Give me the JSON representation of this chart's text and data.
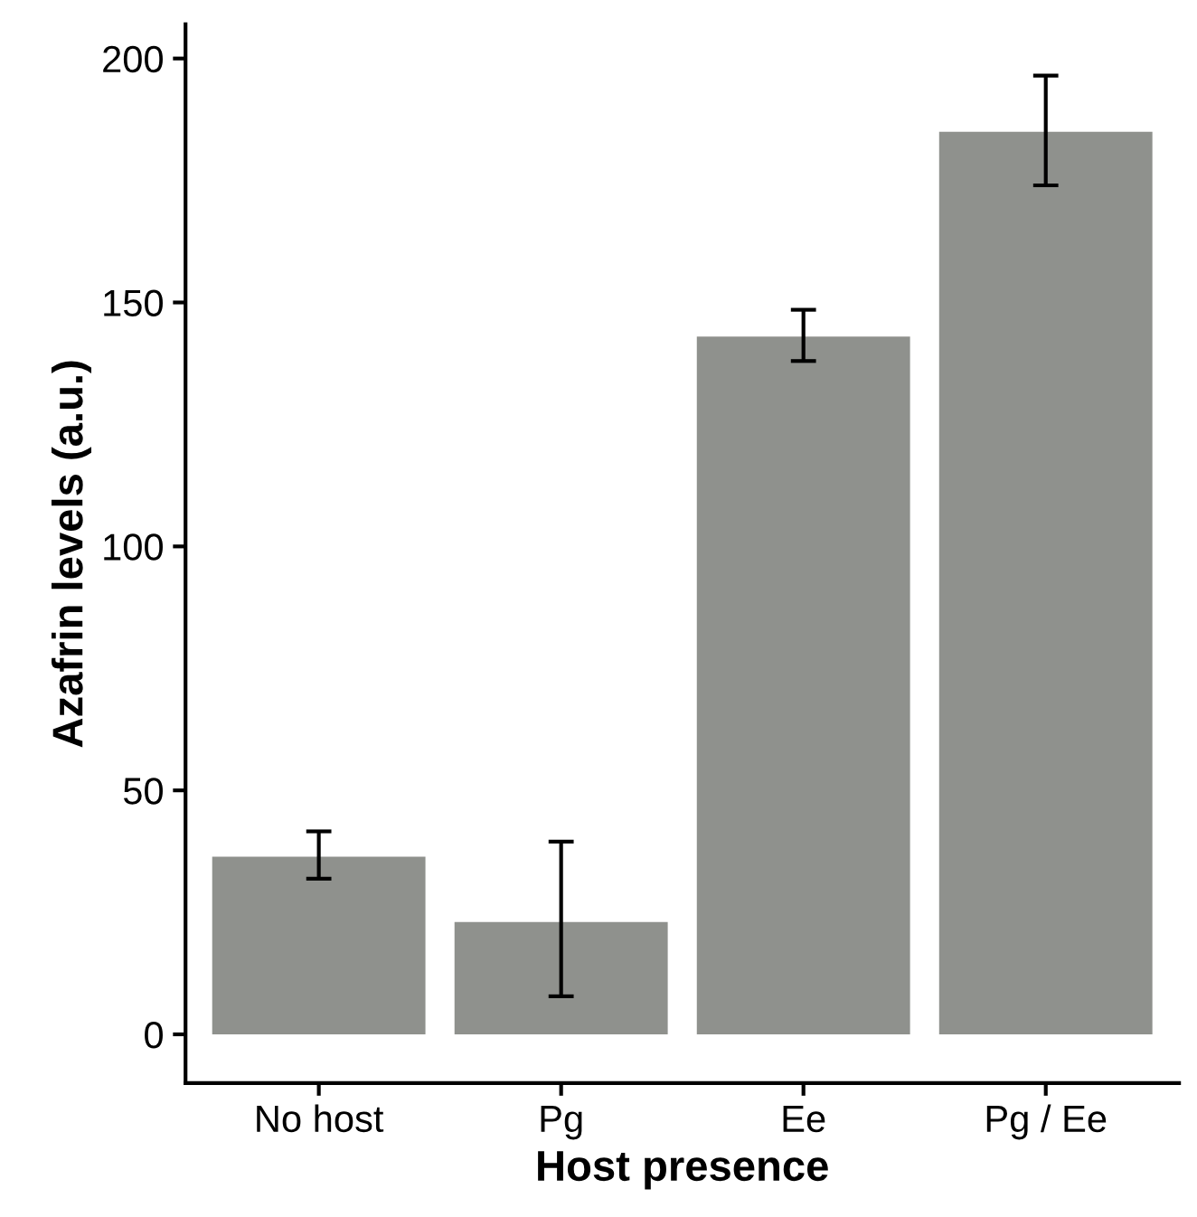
{
  "chart_data": {
    "type": "bar",
    "xlabel": "Host presence",
    "ylabel": "Azafrin levels (a.u.)",
    "categories": [
      "No host",
      "Pg",
      "Ee",
      "Pg / Ee"
    ],
    "values": [
      36.4,
      23,
      143,
      185
    ],
    "errors": [
      [
        31.9,
        41.6
      ],
      [
        7.8,
        39.5
      ],
      [
        138,
        148.5
      ],
      [
        174,
        196.5
      ]
    ],
    "color": "#8f918d",
    "ylim": [
      -10,
      207
    ],
    "yticks": [
      0,
      50,
      100,
      150,
      200
    ],
    "grid": false
  }
}
